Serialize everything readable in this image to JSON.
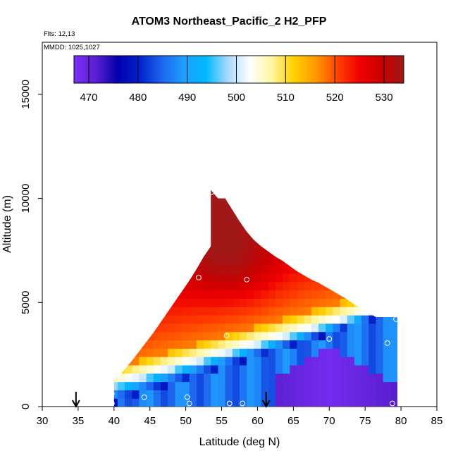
{
  "chart_data": {
    "type": "heatmap",
    "title": "ATOM3 Northeast_Pacific_2 H2_PFP",
    "annotations": [
      "Flts: 12,13",
      "MMDD: 1025,1027"
    ],
    "xlabel": "Latitude (deg N)",
    "ylabel": "Altitude (m)",
    "xlim": [
      30,
      85
    ],
    "ylim": [
      0,
      17500
    ],
    "xticks": [
      "30",
      "35",
      "40",
      "45",
      "50",
      "55",
      "60",
      "65",
      "70",
      "75",
      "80",
      "85"
    ],
    "xtick_values": [
      30,
      35,
      40,
      45,
      50,
      55,
      60,
      65,
      70,
      75,
      80,
      85
    ],
    "yticks": [
      "0",
      "5000",
      "10000",
      "15000"
    ],
    "ytick_values": [
      0,
      5000,
      10000,
      15000
    ],
    "colorbar": {
      "range": [
        467,
        534
      ],
      "ticks": [
        "470",
        "480",
        "490",
        "500",
        "510",
        "520",
        "530"
      ],
      "tick_values": [
        470,
        480,
        490,
        500,
        510,
        520,
        530
      ],
      "colors": [
        "#7b2ff7",
        "#5a1fd0",
        "#0000aa",
        "#0022cc",
        "#1e66ee",
        "#1e9eff",
        "#00b8ff",
        "#a8d8ff",
        "#ffffff",
        "#fff6a0",
        "#ffd000",
        "#ff9a00",
        "#ff4000",
        "#f00000",
        "#c80000",
        "#a01818"
      ]
    },
    "boundary": {
      "lat": [
        40,
        40.5,
        41.5,
        42.5,
        43.5,
        44.5,
        45.5,
        46.5,
        47.5,
        48.5,
        49.5,
        50.5,
        51.5,
        52.5,
        53.5,
        53.5,
        54.5,
        55.5,
        56.5,
        57.5,
        58.5,
        59.5,
        60.5,
        61.5,
        62.5,
        63.5,
        64.5,
        65.5,
        66.5,
        67.5,
        68.5,
        69.5,
        70.5,
        71.5,
        72.5,
        73.5,
        74.5,
        75.5,
        76.5,
        77.5,
        78.5,
        79.5,
        79.5
      ],
      "top_alt": [
        1350,
        1350,
        1800,
        2200,
        2650,
        3100,
        3550,
        4050,
        4550,
        5050,
        5550,
        6050,
        6600,
        7200,
        7700,
        10400,
        10000,
        10000,
        9450,
        8900,
        8400,
        8000,
        7700,
        7450,
        7200,
        7000,
        6750,
        6500,
        6300,
        6100,
        5950,
        5750,
        5550,
        5350,
        5150,
        4900,
        4700,
        4500,
        4300,
        4300,
        4300,
        4300,
        0
      ]
    },
    "samples": [
      {
        "lat": 39.7,
        "alt": 1300
      },
      {
        "lat": 39.7,
        "alt": 600
      },
      {
        "lat": 39.7,
        "alt": 150
      },
      {
        "lat": 44.2,
        "alt": 450
      },
      {
        "lat": 50.2,
        "alt": 450
      },
      {
        "lat": 50.5,
        "alt": 150
      },
      {
        "lat": 51.8,
        "alt": 6200
      },
      {
        "lat": 53.6,
        "alt": 10300
      },
      {
        "lat": 55.7,
        "alt": 3400
      },
      {
        "lat": 58.5,
        "alt": 6100
      },
      {
        "lat": 56.1,
        "alt": 150
      },
      {
        "lat": 57.9,
        "alt": 150
      },
      {
        "lat": 70.0,
        "alt": 3250
      },
      {
        "lat": 78.1,
        "alt": 3050
      },
      {
        "lat": 79.3,
        "alt": 4200
      },
      {
        "lat": 78.8,
        "alt": 150
      }
    ],
    "flight_markers_lat": [
      34.7,
      61.2
    ]
  }
}
